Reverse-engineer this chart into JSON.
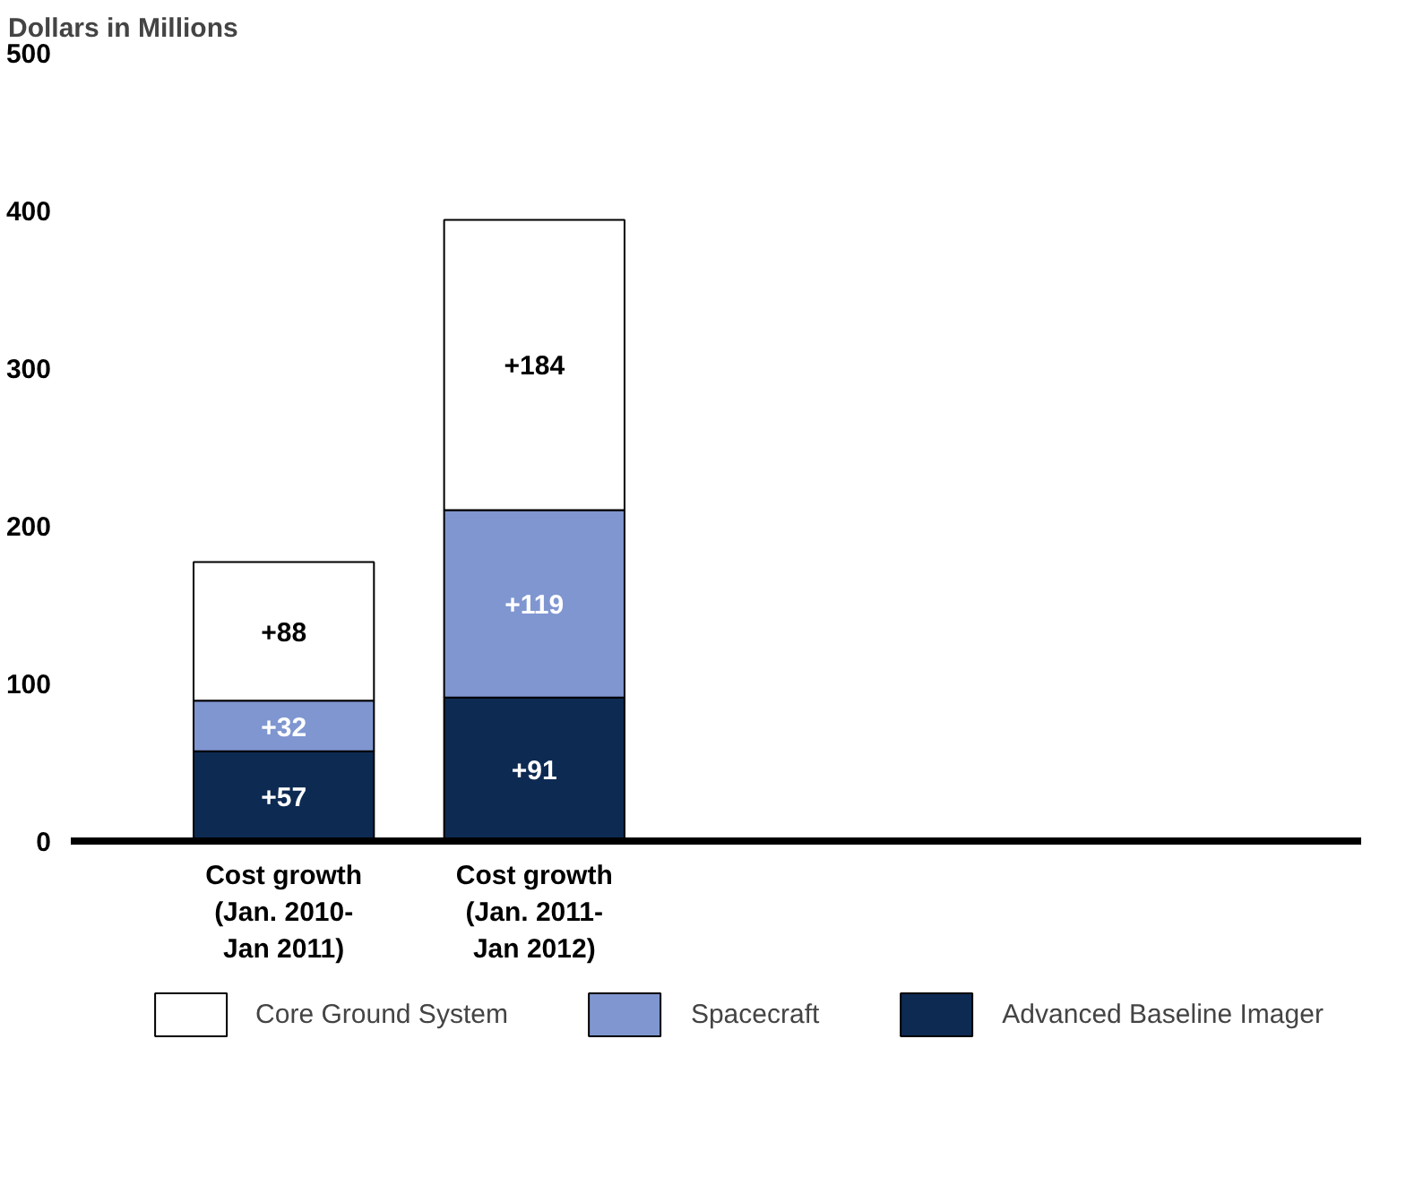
{
  "chart_data": {
    "type": "bar",
    "stacked": true,
    "ylabel": "Dollars in Millions",
    "categories": [
      "Cost growth\n(Jan. 2010-\nJan 2011)",
      "Cost growth\n(Jan. 2011-\nJan 2012)"
    ],
    "series": [
      {
        "name": "Advanced Baseline Imager",
        "color": "#0d2a52",
        "values": [
          57,
          91
        ],
        "value_labels": [
          "+57",
          "+91"
        ]
      },
      {
        "name": "Spacecraft",
        "color": "#7f96d0",
        "values": [
          32,
          119
        ],
        "value_labels": [
          "+32",
          "+119"
        ]
      },
      {
        "name": "Core Ground System",
        "color": "#ffffff",
        "values": [
          88,
          184
        ],
        "value_labels": [
          "+88",
          "+184"
        ]
      }
    ],
    "ylim": [
      0,
      500
    ],
    "yticks": [
      0,
      100,
      200,
      300,
      400,
      500
    ],
    "grid": false,
    "legend": "bottom"
  }
}
